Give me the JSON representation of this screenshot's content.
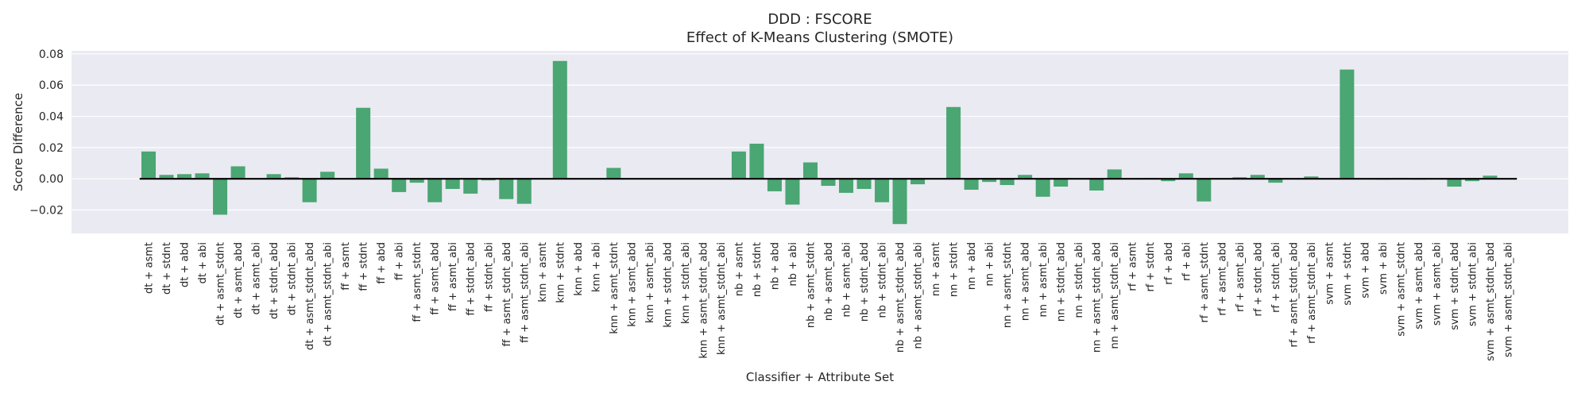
{
  "chart_data": {
    "type": "bar",
    "title": "DDD : FSCORE",
    "subtitle": "Effect of K-Means Clustering (SMOTE)",
    "xlabel": "Classifier + Attribute Set",
    "ylabel": "Score Difference",
    "ylim": [
      -0.035,
      0.082
    ],
    "yticks": [
      -0.02,
      0.0,
      0.02,
      0.04,
      0.06,
      0.08
    ],
    "ytick_labels": [
      "−0.02",
      "0.00",
      "0.02",
      "0.04",
      "0.06",
      "0.08"
    ],
    "grid": true,
    "bar_color": "#4aa672",
    "background_color": "#eaeaf2",
    "zero_line_color": "#000000",
    "categories": [
      "dt + asmt",
      "dt + stdnt",
      "dt + abd",
      "dt + abi",
      "dt + asmt_stdnt",
      "dt + asmt_abd",
      "dt + asmt_abi",
      "dt + stdnt_abd",
      "dt + stdnt_abi",
      "dt + asmt_stdnt_abd",
      "dt + asmt_stdnt_abi",
      "ff + asmt",
      "ff + stdnt",
      "ff + abd",
      "ff + abi",
      "ff + asmt_stdnt",
      "ff + asmt_abd",
      "ff + asmt_abi",
      "ff + stdnt_abd",
      "ff + stdnt_abi",
      "ff + asmt_stdnt_abd",
      "ff + asmt_stdnt_abi",
      "knn + asmt",
      "knn + stdnt",
      "knn + abd",
      "knn + abi",
      "knn + asmt_stdnt",
      "knn + asmt_abd",
      "knn + asmt_abi",
      "knn + stdnt_abd",
      "knn + stdnt_abi",
      "knn + asmt_stdnt_abd",
      "knn + asmt_stdnt_abi",
      "nb + asmt",
      "nb + stdnt",
      "nb + abd",
      "nb + abi",
      "nb + asmt_stdnt",
      "nb + asmt_abd",
      "nb + asmt_abi",
      "nb + stdnt_abd",
      "nb + stdnt_abi",
      "nb + asmt_stdnt_abd",
      "nb + asmt_stdnt_abi",
      "nn + asmt",
      "nn + stdnt",
      "nn + abd",
      "nn + abi",
      "nn + asmt_stdnt",
      "nn + asmt_abd",
      "nn + asmt_abi",
      "nn + stdnt_abd",
      "nn + stdnt_abi",
      "nn + asmt_stdnt_abd",
      "nn + asmt_stdnt_abi",
      "rf + asmt",
      "rf + stdnt",
      "rf + abd",
      "rf + abi",
      "rf + asmt_stdnt",
      "rf + asmt_abd",
      "rf + asmt_abi",
      "rf + stdnt_abd",
      "rf + stdnt_abi",
      "rf + asmt_stdnt_abd",
      "rf + asmt_stdnt_abi",
      "svm + asmt",
      "svm + stdnt",
      "svm + abd",
      "svm + abi",
      "svm + asmt_stdnt",
      "svm + asmt_abd",
      "svm + asmt_abi",
      "svm + stdnt_abd",
      "svm + stdnt_abi",
      "svm + asmt_stdnt_abd",
      "svm + asmt_stdnt_abi"
    ],
    "values": [
      0.0175,
      0.0025,
      0.003,
      0.0035,
      -0.023,
      0.008,
      0.0,
      0.003,
      0.001,
      -0.015,
      0.0045,
      0.0,
      0.0455,
      0.0065,
      -0.0085,
      -0.0025,
      -0.015,
      -0.0065,
      -0.0095,
      -0.001,
      -0.013,
      -0.016,
      0.0,
      0.0755,
      0.0,
      0.0,
      0.007,
      0.0,
      0.0,
      0.0,
      0.0,
      0.0,
      0.0,
      0.0175,
      0.0225,
      -0.008,
      -0.0165,
      0.0105,
      -0.0045,
      -0.009,
      -0.0065,
      -0.015,
      -0.029,
      -0.0035,
      0.0,
      0.046,
      -0.007,
      -0.002,
      -0.004,
      0.0025,
      -0.0115,
      -0.005,
      0.0,
      -0.0075,
      0.006,
      0.0,
      0.0005,
      -0.0015,
      0.0035,
      -0.0145,
      0.0,
      0.001,
      0.0025,
      -0.0025,
      0.0,
      0.0015,
      0.0,
      0.07,
      0.0,
      -0.0005,
      0.0005,
      -0.0005,
      0.0,
      -0.005,
      -0.0015,
      0.002,
      0.0
    ]
  }
}
